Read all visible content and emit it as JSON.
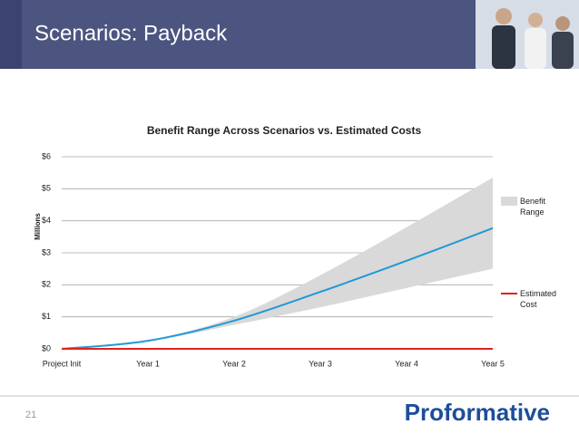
{
  "slide_title": "Scenarios: Payback",
  "page_number": "21",
  "logo": "Proformative",
  "chart_data": {
    "type": "line",
    "title": "Benefit Range Across Scenarios vs. Estimated Costs",
    "y_label": "Millions",
    "categories": [
      "Project Init",
      "Year 1",
      "Year 2",
      "Year 3",
      "Year 4",
      "Year 5"
    ],
    "ylim": [
      0,
      6
    ],
    "yticks": [
      {
        "value": 0,
        "label": "$0"
      },
      {
        "value": 1,
        "label": "$1"
      },
      {
        "value": 2,
        "label": "$2"
      },
      {
        "value": 3,
        "label": "$3"
      },
      {
        "value": 4,
        "label": "$4"
      },
      {
        "value": 5,
        "label": "$5"
      },
      {
        "value": 6,
        "label": "$6"
      }
    ],
    "grid": true,
    "legend": "right",
    "series": [
      {
        "name": "Benefit Range",
        "type": "band",
        "color": "#d9d9d9",
        "lower": [
          0,
          0.23,
          0.75,
          1.3,
          1.9,
          2.5
        ],
        "upper": [
          0,
          0.27,
          1.0,
          2.3,
          3.8,
          5.35
        ]
      },
      {
        "color": "#1f9ad6",
        "values": [
          0,
          0.25,
          0.88,
          1.78,
          2.75,
          3.77
        ]
      },
      {
        "name": "Estimated Cost",
        "color": "#e2231a",
        "values": [
          0,
          0,
          0,
          0,
          0,
          0
        ]
      }
    ]
  }
}
